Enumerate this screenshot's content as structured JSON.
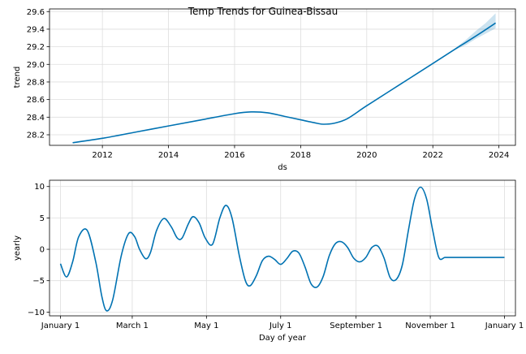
{
  "title": "Temp Trends for Guinea-Bissau",
  "colors": {
    "line": "#0072B2",
    "band": "#0072B2",
    "grid": "#dddddd",
    "axis": "#000000"
  },
  "chart_data": [
    {
      "type": "line",
      "ylabel": "trend",
      "xlabel": "ds",
      "xlim": [
        2010.4,
        2024.5
      ],
      "ylim": [
        28.08,
        29.63
      ],
      "xticks": [
        2012,
        2014,
        2016,
        2018,
        2020,
        2022,
        2024
      ],
      "xtick_labels": [
        "2012",
        "2014",
        "2016",
        "2018",
        "2020",
        "2022",
        "2024"
      ],
      "yticks": [
        28.2,
        28.4,
        28.6,
        28.8,
        29.0,
        29.2,
        29.4,
        29.6
      ],
      "ytick_labels": [
        "28.2",
        "28.4",
        "28.6",
        "28.8",
        "29.0",
        "29.2",
        "29.4",
        "29.6"
      ],
      "grid": true,
      "x": [
        2011.1,
        2012.0,
        2013.0,
        2014.0,
        2015.0,
        2016.0,
        2016.5,
        2017.0,
        2017.5,
        2018.0,
        2018.5,
        2018.7,
        2019.0,
        2019.4,
        2020.0,
        2021.0,
        2022.0,
        2022.7,
        2023.0,
        2023.5,
        2023.9
      ],
      "y": [
        28.11,
        28.16,
        28.23,
        28.3,
        28.37,
        28.44,
        28.46,
        28.45,
        28.41,
        28.37,
        28.33,
        28.32,
        28.33,
        28.38,
        28.53,
        28.77,
        29.01,
        29.18,
        29.25,
        29.37,
        29.47
      ],
      "band_x": [
        2022.7,
        2023.0,
        2023.3,
        2023.6,
        2023.9
      ],
      "band_upper": [
        29.19,
        29.28,
        29.38,
        29.47,
        29.58
      ],
      "band_lower": [
        29.17,
        29.22,
        29.29,
        29.35,
        29.41
      ]
    },
    {
      "type": "line",
      "ylabel": "yearly",
      "xlabel": "Day of year",
      "xlim": [
        -9,
        374
      ],
      "ylim": [
        -10.6,
        11.0
      ],
      "xticks": [
        0,
        59,
        120,
        181,
        243,
        304,
        365
      ],
      "xtick_labels": [
        "January 1",
        "March 1",
        "May 1",
        "July 1",
        "September 1",
        "November 1",
        "January 1"
      ],
      "yticks": [
        -10,
        -5,
        0,
        5,
        10
      ],
      "ytick_labels": [
        "−10",
        "−5",
        "0",
        "5",
        "10"
      ],
      "grid": true,
      "x": [
        0,
        5,
        10,
        15,
        22,
        29,
        34,
        38,
        43,
        50,
        56,
        61,
        65,
        70,
        74,
        79,
        85,
        91,
        96,
        100,
        105,
        109,
        114,
        119,
        125,
        131,
        136,
        141,
        147,
        152,
        156,
        161,
        166,
        171,
        176,
        181,
        186,
        191,
        196,
        201,
        206,
        211,
        216,
        221,
        226,
        231,
        236,
        241,
        246,
        251,
        256,
        261,
        266,
        271,
        276,
        281,
        286,
        291,
        296,
        301,
        306,
        311,
        316,
        321,
        326,
        331,
        336,
        341,
        346,
        351,
        356,
        361,
        365
      ],
      "y": [
        -2.3,
        -4.4,
        -2.0,
        2.0,
        3.0,
        -2.0,
        -7.5,
        -9.8,
        -8.0,
        -1.0,
        2.5,
        2.0,
        0.0,
        -1.5,
        -0.5,
        3.0,
        4.9,
        3.6,
        1.8,
        1.8,
        4.0,
        5.2,
        4.2,
        1.8,
        0.8,
        5.0,
        7.0,
        5.0,
        -1.0,
        -5.0,
        -5.8,
        -4.2,
        -1.8,
        -1.1,
        -1.6,
        -2.4,
        -1.5,
        -0.3,
        -0.6,
        -2.8,
        -5.5,
        -6.0,
        -4.3,
        -1.0,
        0.9,
        1.2,
        0.3,
        -1.4,
        -2.0,
        -1.3,
        0.3,
        0.5,
        -1.4,
        -4.5,
        -4.8,
        -2.5,
        3.0,
        8.0,
        9.9,
        8.0,
        3.0,
        -1.3,
        -1.3,
        -1.3,
        -1.3,
        -1.3,
        -1.3,
        -1.3,
        -1.3,
        -1.3,
        -1.3,
        -1.3,
        -1.3
      ]
    }
  ]
}
